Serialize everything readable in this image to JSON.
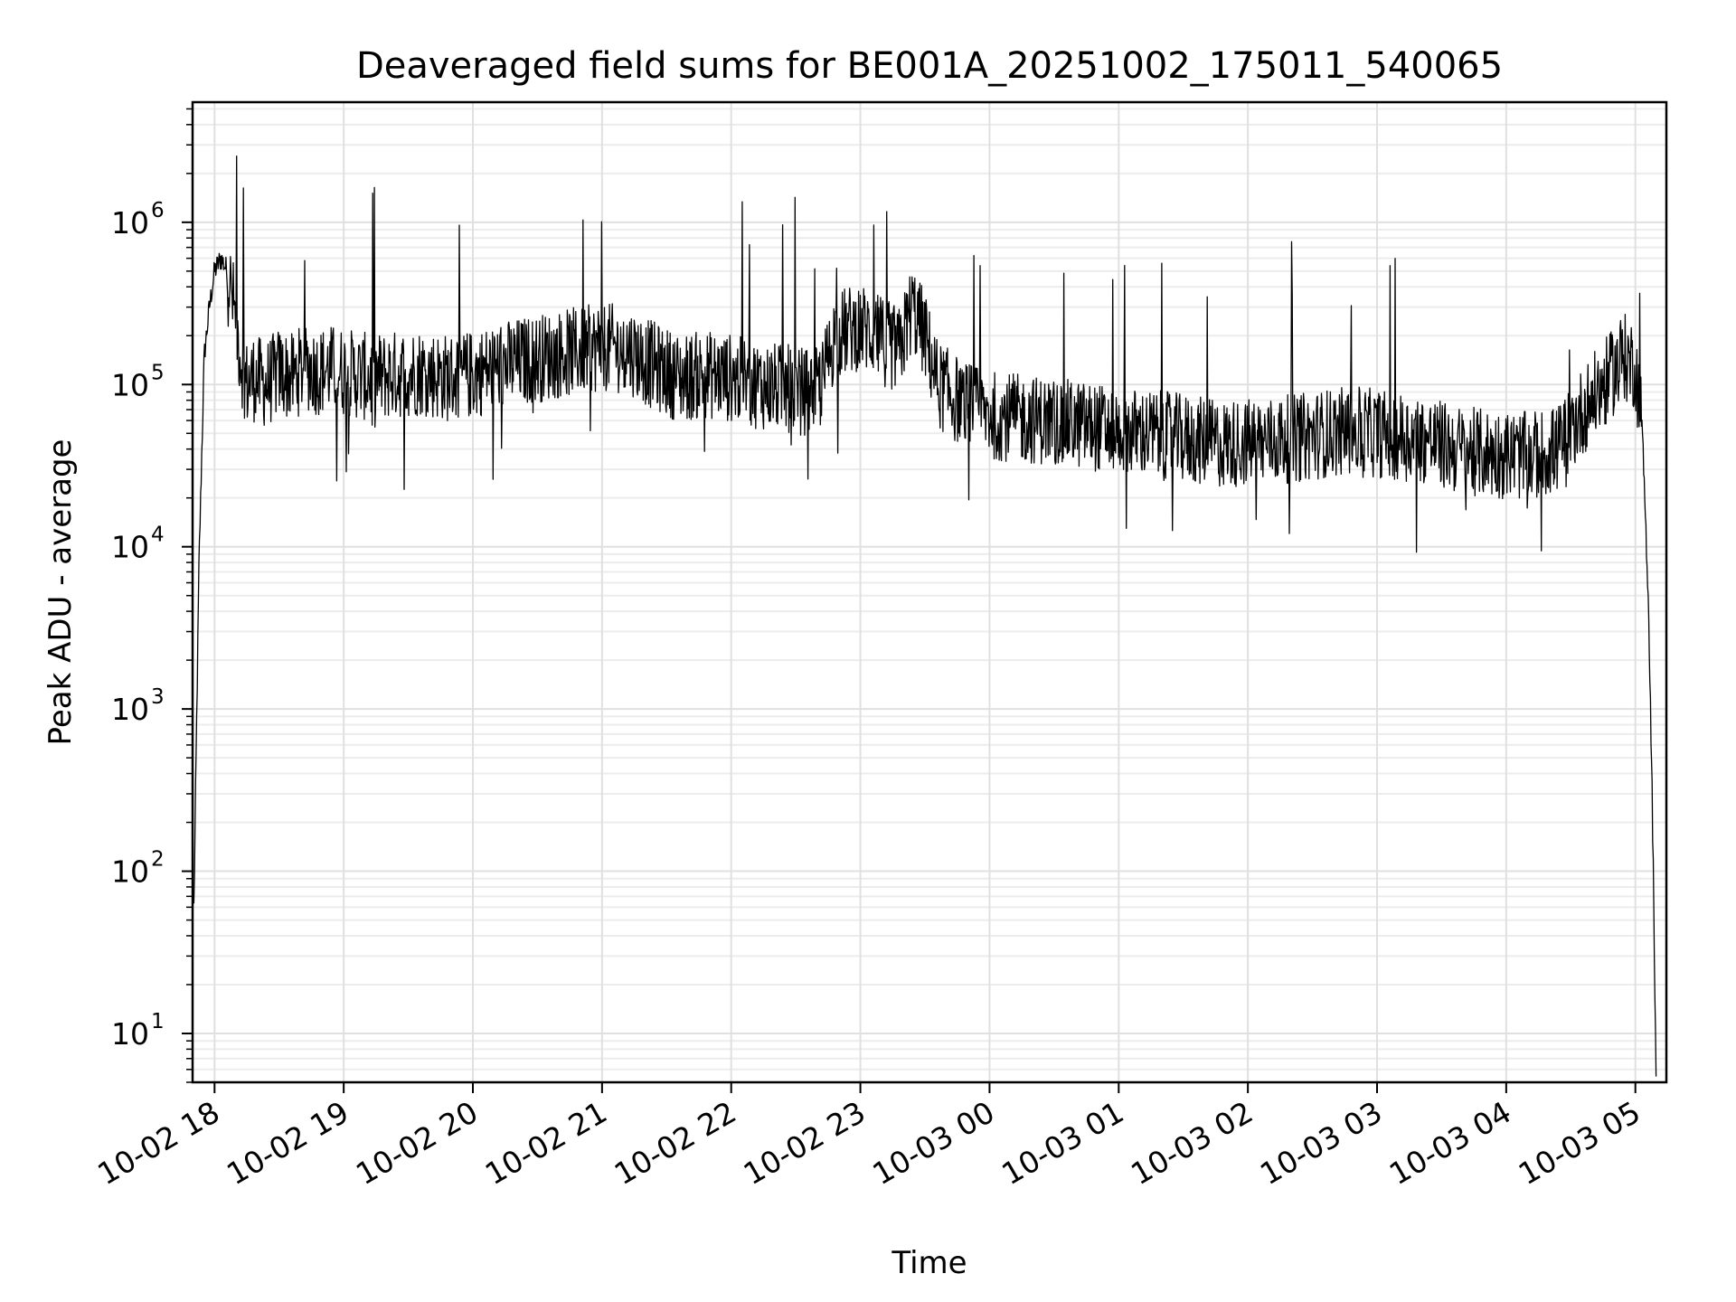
{
  "chart_data": {
    "type": "line",
    "title": "Deaveraged field sums for BE001A_20251002_175011_540065",
    "xlabel": "Time",
    "ylabel": "Peak ADU - average",
    "yscale": "log",
    "ylim": [
      5,
      5500000
    ],
    "xlim_hours": [
      17.83,
      29.24
    ],
    "x_ticks": [
      {
        "label": "10-02 18",
        "hour": 18
      },
      {
        "label": "10-02 19",
        "hour": 19
      },
      {
        "label": "10-02 20",
        "hour": 20
      },
      {
        "label": "10-02 21",
        "hour": 21
      },
      {
        "label": "10-02 22",
        "hour": 22
      },
      {
        "label": "10-02 23",
        "hour": 23
      },
      {
        "label": "10-03 00",
        "hour": 24
      },
      {
        "label": "10-03 01",
        "hour": 25
      },
      {
        "label": "10-03 02",
        "hour": 26
      },
      {
        "label": "10-03 03",
        "hour": 27
      },
      {
        "label": "10-03 04",
        "hour": 28
      },
      {
        "label": "10-03 05",
        "hour": 29
      }
    ],
    "y_ticks": [
      {
        "base": "10",
        "exp": "1",
        "value": 10
      },
      {
        "base": "10",
        "exp": "2",
        "value": 100
      },
      {
        "base": "10",
        "exp": "3",
        "value": 1000
      },
      {
        "base": "10",
        "exp": "4",
        "value": 10000
      },
      {
        "base": "10",
        "exp": "5",
        "value": 100000
      },
      {
        "base": "10",
        "exp": "6",
        "value": 1000000
      }
    ],
    "series": [
      {
        "name": "deaveraged field sum",
        "color": "#000000",
        "x_hours": [
          17.84,
          17.88,
          17.92,
          17.96,
          18.0,
          18.05,
          18.1,
          18.15,
          18.2,
          18.25,
          18.3,
          18.4,
          18.5,
          18.6,
          18.7,
          18.8,
          18.9,
          19.0,
          19.2,
          19.4,
          19.6,
          19.8,
          20.0,
          20.2,
          20.4,
          20.6,
          20.8,
          21.0,
          21.2,
          21.4,
          21.6,
          21.8,
          22.0,
          22.2,
          22.4,
          22.6,
          22.7,
          22.8,
          23.0,
          23.2,
          23.3,
          23.4,
          23.5,
          23.6,
          23.8,
          24.0,
          24.2,
          24.4,
          24.6,
          24.8,
          25.0,
          25.2,
          25.4,
          25.6,
          25.8,
          26.0,
          26.2,
          26.4,
          26.6,
          26.8,
          27.0,
          27.2,
          27.4,
          27.6,
          27.8,
          28.0,
          28.2,
          28.4,
          28.6,
          28.8,
          28.9,
          29.0,
          29.05,
          29.1,
          29.13,
          29.16
        ],
        "values": [
          60,
          8000,
          150000,
          300000,
          500000,
          600000,
          500000,
          300000,
          150000,
          100000,
          110000,
          100000,
          120000,
          110000,
          130000,
          120000,
          125000,
          120000,
          110000,
          115000,
          120000,
          110000,
          115000,
          130000,
          140000,
          150000,
          160000,
          170000,
          165000,
          130000,
          110000,
          115000,
          110000,
          100000,
          95000,
          90000,
          100000,
          200000,
          230000,
          180000,
          160000,
          300000,
          200000,
          100000,
          75000,
          65000,
          62000,
          60000,
          58000,
          55000,
          52000,
          50000,
          48000,
          45000,
          43000,
          44000,
          45000,
          47000,
          50000,
          52000,
          50000,
          48000,
          45000,
          40000,
          38000,
          37000,
          36000,
          40000,
          70000,
          110000,
          150000,
          130000,
          60000,
          5000,
          300,
          6
        ]
      }
    ]
  }
}
